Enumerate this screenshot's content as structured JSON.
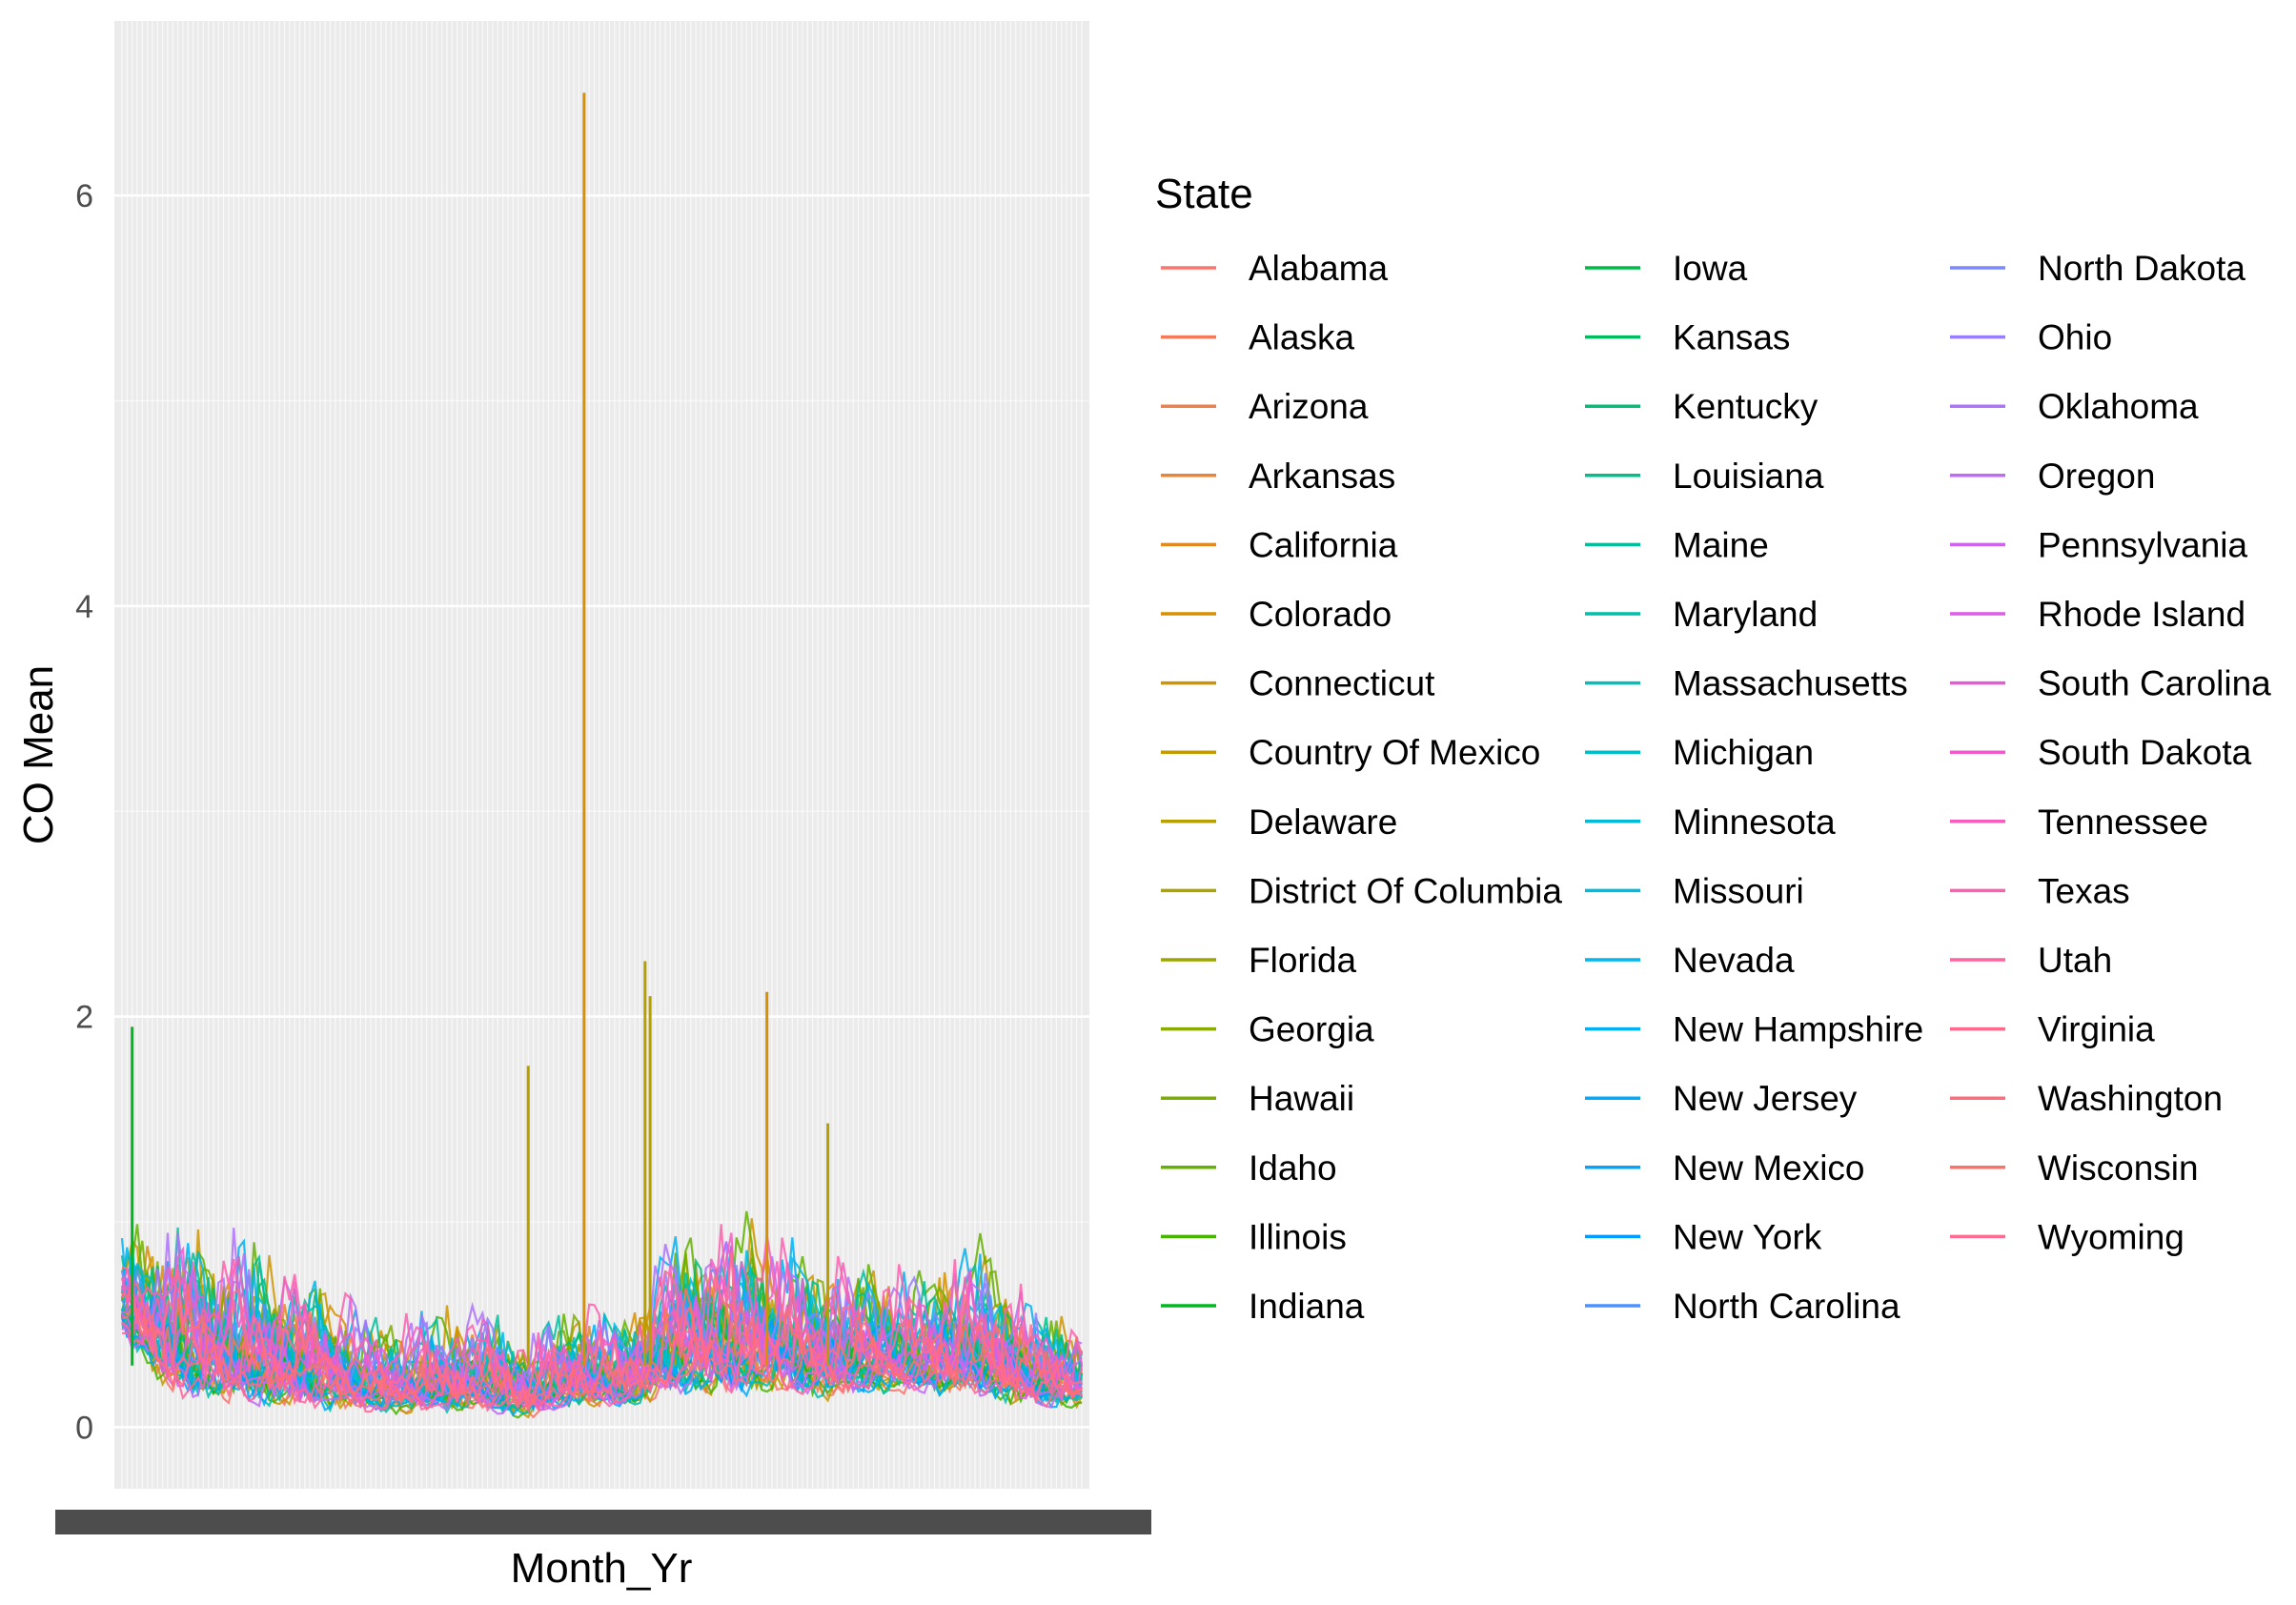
{
  "chart_data": {
    "type": "line",
    "xlabel": "Month_Yr",
    "ylabel": "CO Mean",
    "ylim": [
      -0.3,
      6.85
    ],
    "y_ticks": [
      0,
      2,
      4,
      6
    ],
    "x_tick_labels_overplotted": true,
    "grid": true,
    "background": "#ebebeb",
    "legend": {
      "title": "State",
      "placement": "right",
      "columns": 3,
      "entries": [
        {
          "name": "Alabama",
          "color": "#F8766D"
        },
        {
          "name": "Alaska",
          "color": "#F47A5A"
        },
        {
          "name": "Arizona",
          "color": "#EF7F49"
        },
        {
          "name": "Arkansas",
          "color": "#E98536"
        },
        {
          "name": "California",
          "color": "#E28A1E"
        },
        {
          "name": "Colorado",
          "color": "#D89000"
        },
        {
          "name": "Connecticut",
          "color": "#CE9500"
        },
        {
          "name": "Country Of Mexico",
          "color": "#C39A00"
        },
        {
          "name": "Delaware",
          "color": "#B79F00"
        },
        {
          "name": "District Of Columbia",
          "color": "#AAA300"
        },
        {
          "name": "Florida",
          "color": "#9CA700"
        },
        {
          "name": "Georgia",
          "color": "#8CAB00"
        },
        {
          "name": "Hawaii",
          "color": "#7AAE00"
        },
        {
          "name": "Idaho",
          "color": "#64B200"
        },
        {
          "name": "Illinois",
          "color": "#45B500"
        },
        {
          "name": "Indiana",
          "color": "#00B81F"
        },
        {
          "name": "Iowa",
          "color": "#00BA48"
        },
        {
          "name": "Kansas",
          "color": "#00BC61"
        },
        {
          "name": "Kentucky",
          "color": "#00BE76"
        },
        {
          "name": "Louisiana",
          "color": "#00BF8A"
        },
        {
          "name": "Maine",
          "color": "#00C09B"
        },
        {
          "name": "Maryland",
          "color": "#00C0AC"
        },
        {
          "name": "Massachusetts",
          "color": "#00C0BB"
        },
        {
          "name": "Michigan",
          "color": "#00BFC9"
        },
        {
          "name": "Minnesota",
          "color": "#00BDD5"
        },
        {
          "name": "Missouri",
          "color": "#00BAE0"
        },
        {
          "name": "Nevada",
          "color": "#00B6EB"
        },
        {
          "name": "New Hampshire",
          "color": "#00B1F4"
        },
        {
          "name": "New Jersey",
          "color": "#00ABFC"
        },
        {
          "name": "New Mexico",
          "color": "#00A5FF"
        },
        {
          "name": "New York",
          "color": "#009DFF"
        },
        {
          "name": "North Carolina",
          "color": "#4C93FF"
        },
        {
          "name": "North Dakota",
          "color": "#7A89FF"
        },
        {
          "name": "Ohio",
          "color": "#977EFF"
        },
        {
          "name": "Oklahoma",
          "color": "#AE73FC"
        },
        {
          "name": "Oregon",
          "color": "#C06AF6"
        },
        {
          "name": "Pennsylvania",
          "color": "#D063EE"
        },
        {
          "name": "Rhode Island",
          "color": "#DD5EE5"
        },
        {
          "name": "South Carolina",
          "color": "#E75BD9"
        },
        {
          "name": "South Dakota",
          "color": "#F05BCC"
        },
        {
          "name": "Tennessee",
          "color": "#F65DBE"
        },
        {
          "name": "Texas",
          "color": "#FB60AE"
        },
        {
          "name": "Utah",
          "color": "#FE649D"
        },
        {
          "name": "Virginia",
          "color": "#FF698B"
        },
        {
          "name": "Washington",
          "color": "#FF6D7A"
        },
        {
          "name": "Wisconsin",
          "color": "#FD7168"
        },
        {
          "name": "Wyoming",
          "color": "#FF6C91"
        }
      ]
    },
    "months_count": 190,
    "series_envelope": {
      "description_values": "approximate per-month max (top) and min (bottom) of CO Mean across states, sampled every 10 months",
      "max": [
        1.3,
        1.6,
        1.4,
        1.3,
        1.1,
        0.8,
        0.8,
        0.9,
        0.7,
        0.9,
        0.8,
        1.5,
        1.6,
        1.4,
        1.3,
        1.2,
        1.1,
        1.4,
        0.9,
        0.8
      ],
      "min": [
        0.4,
        0.05,
        0.04,
        0.02,
        0.02,
        0.02,
        0.02,
        0.03,
        0.0,
        0.05,
        0.05,
        0.08,
        0.05,
        0.1,
        0.05,
        0.1,
        0.1,
        0.05,
        0.05,
        0.05
      ]
    },
    "notable_peaks": [
      {
        "month_index": 2,
        "value": 1.95,
        "state": "Indiana"
      },
      {
        "month_index": 91,
        "value": 6.5,
        "state": "Colorado"
      },
      {
        "month_index": 103,
        "value": 2.27,
        "state": "Delaware"
      },
      {
        "month_index": 104,
        "value": 2.1,
        "state": "Delaware"
      },
      {
        "month_index": 127,
        "value": 2.12,
        "state": "Colorado"
      },
      {
        "month_index": 139,
        "value": 1.48,
        "state": "Delaware"
      },
      {
        "month_index": 80,
        "value": 1.76,
        "state": "Delaware"
      }
    ]
  }
}
